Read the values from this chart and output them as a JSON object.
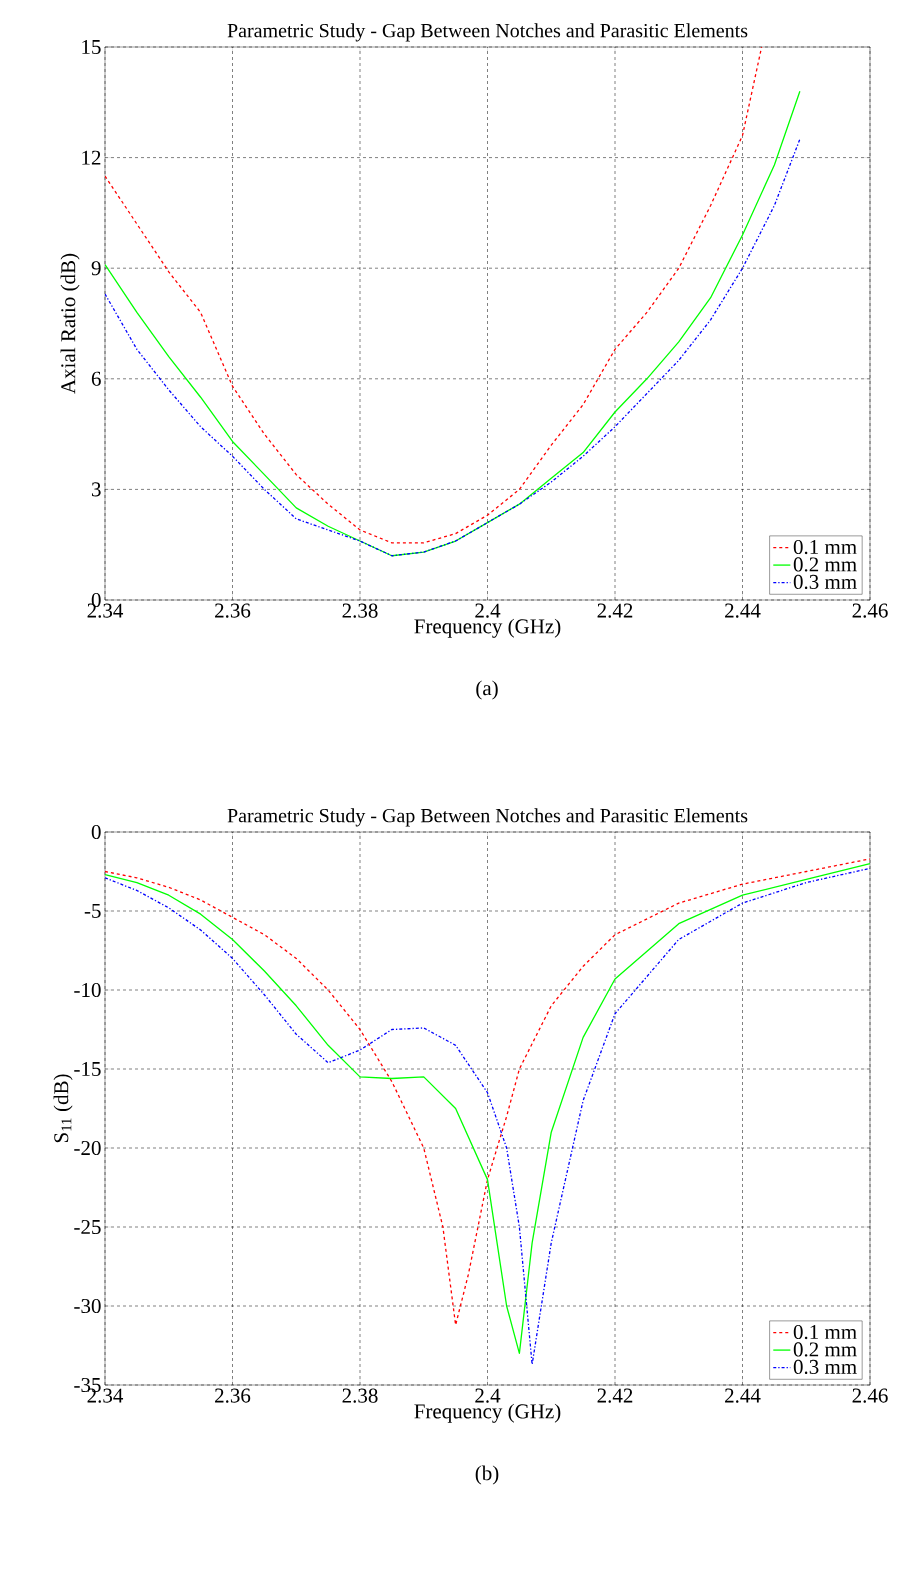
{
  "chart_data": [
    {
      "type": "line",
      "title": "Parametric Study - Gap Between Notches and Parasitic Elements",
      "xlabel": "Frequency (GHz)",
      "ylabel": "Axial Ratio (dB)",
      "annotations": [
        "(a)"
      ],
      "xlim": [
        2.34,
        2.46
      ],
      "ylim": [
        0,
        15
      ],
      "xticks": [
        2.34,
        2.36,
        2.38,
        {
          "value": 2.4,
          "label": "2.4"
        },
        2.42,
        2.44,
        2.46
      ],
      "yticks": [
        0,
        3,
        6,
        9,
        12,
        15
      ],
      "grid": true,
      "legend": "bottom right",
      "series": [
        {
          "name": "0.1 mm",
          "color": "#ff0000",
          "line_style": "dashed",
          "x": [
            2.34,
            2.345,
            2.35,
            2.355,
            2.36,
            2.365,
            2.37,
            2.375,
            2.38,
            2.385,
            2.39,
            2.395,
            2.4,
            2.405,
            2.41,
            2.415,
            2.42,
            2.425,
            2.43,
            2.435,
            2.44,
            2.443
          ],
          "values": [
            11.5,
            10.2,
            8.9,
            7.8,
            5.8,
            4.5,
            3.4,
            2.6,
            1.9,
            1.55,
            1.55,
            1.8,
            2.3,
            3.0,
            4.2,
            5.3,
            6.8,
            7.8,
            9.0,
            10.7,
            12.6,
            15
          ]
        },
        {
          "name": "0.2 mm",
          "color": "#00ff00",
          "line_style": "solid",
          "x": [
            2.34,
            2.345,
            2.35,
            2.355,
            2.36,
            2.365,
            2.37,
            2.375,
            2.38,
            2.385,
            2.39,
            2.395,
            2.4,
            2.405,
            2.41,
            2.415,
            2.42,
            2.425,
            2.43,
            2.435,
            2.44,
            2.445,
            2.449
          ],
          "values": [
            9.1,
            7.8,
            6.6,
            5.5,
            4.3,
            3.4,
            2.5,
            2.0,
            1.6,
            1.2,
            1.3,
            1.6,
            2.1,
            2.6,
            3.3,
            4.0,
            5.1,
            6.0,
            7.0,
            8.2,
            9.9,
            11.8,
            13.8
          ]
        },
        {
          "name": "0.3 mm",
          "color": "#0000ff",
          "line_style": "dashdot",
          "x": [
            2.34,
            2.345,
            2.35,
            2.355,
            2.36,
            2.365,
            2.37,
            2.375,
            2.38,
            2.385,
            2.39,
            2.395,
            2.4,
            2.405,
            2.41,
            2.415,
            2.42,
            2.425,
            2.43,
            2.435,
            2.44,
            2.445,
            2.449
          ],
          "values": [
            8.3,
            6.8,
            5.7,
            4.7,
            3.9,
            3.0,
            2.2,
            1.9,
            1.6,
            1.2,
            1.3,
            1.6,
            2.1,
            2.6,
            3.2,
            3.9,
            4.7,
            5.6,
            6.5,
            7.6,
            9.0,
            10.7,
            12.5
          ]
        }
      ]
    },
    {
      "type": "line",
      "title": "Parametric Study - Gap Between Notches and Parasitic Elements",
      "xlabel": "Frequency (GHz)",
      "ylabel": "S$_{11}$ (dB)",
      "annotations": [
        "(b)"
      ],
      "xlim": [
        2.34,
        2.46
      ],
      "ylim": [
        -35,
        0
      ],
      "xticks": [
        2.34,
        2.36,
        2.38,
        {
          "value": 2.4,
          "label": "2.4"
        },
        2.42,
        2.44,
        2.46
      ],
      "yticks": [
        -35,
        -30,
        -25,
        -20,
        -15,
        -10,
        -5,
        0
      ],
      "grid": true,
      "legend": "bottom right",
      "series": [
        {
          "name": "0.1 mm",
          "color": "#ff0000",
          "line_style": "dashed",
          "x": [
            2.34,
            2.345,
            2.35,
            2.355,
            2.36,
            2.365,
            2.37,
            2.375,
            2.38,
            2.385,
            2.39,
            2.393,
            2.395,
            2.397,
            2.4,
            2.403,
            2.405,
            2.41,
            2.415,
            2.42,
            2.43,
            2.44,
            2.45,
            2.46
          ],
          "values": [
            -2.5,
            -2.9,
            -3.5,
            -4.3,
            -5.4,
            -6.5,
            -8.0,
            -10.0,
            -12.5,
            -15.8,
            -20,
            -25,
            -31.2,
            -28,
            -22,
            -18,
            -15,
            -11,
            -8.5,
            -6.5,
            -4.5,
            -3.3,
            -2.5,
            -1.7
          ]
        },
        {
          "name": "0.2 mm",
          "color": "#00ff00",
          "line_style": "solid",
          "x": [
            2.34,
            2.345,
            2.35,
            2.355,
            2.36,
            2.365,
            2.37,
            2.375,
            2.38,
            2.385,
            2.39,
            2.395,
            2.4,
            2.403,
            2.405,
            2.407,
            2.41,
            2.415,
            2.42,
            2.43,
            2.44,
            2.45,
            2.46
          ],
          "values": [
            -2.7,
            -3.2,
            -4.0,
            -5.2,
            -6.8,
            -8.8,
            -11.0,
            -13.5,
            -15.5,
            -15.6,
            -15.5,
            -17.5,
            -22,
            -30,
            -33,
            -26,
            -19,
            -13,
            -9.3,
            -5.8,
            -4.0,
            -3.0,
            -2.0
          ]
        },
        {
          "name": "0.3 mm",
          "color": "#0000ff",
          "line_style": "dashdot",
          "x": [
            2.34,
            2.345,
            2.35,
            2.355,
            2.36,
            2.365,
            2.37,
            2.375,
            2.38,
            2.385,
            2.39,
            2.395,
            2.4,
            2.403,
            2.405,
            2.407,
            2.41,
            2.415,
            2.42,
            2.43,
            2.44,
            2.45,
            2.46
          ],
          "values": [
            -2.9,
            -3.7,
            -4.8,
            -6.2,
            -8.0,
            -10.3,
            -12.8,
            -14.6,
            -13.8,
            -12.5,
            -12.4,
            -13.5,
            -16.5,
            -20,
            -25,
            -33.7,
            -26,
            -17,
            -11.5,
            -6.8,
            -4.5,
            -3.2,
            -2.3
          ]
        }
      ]
    }
  ]
}
